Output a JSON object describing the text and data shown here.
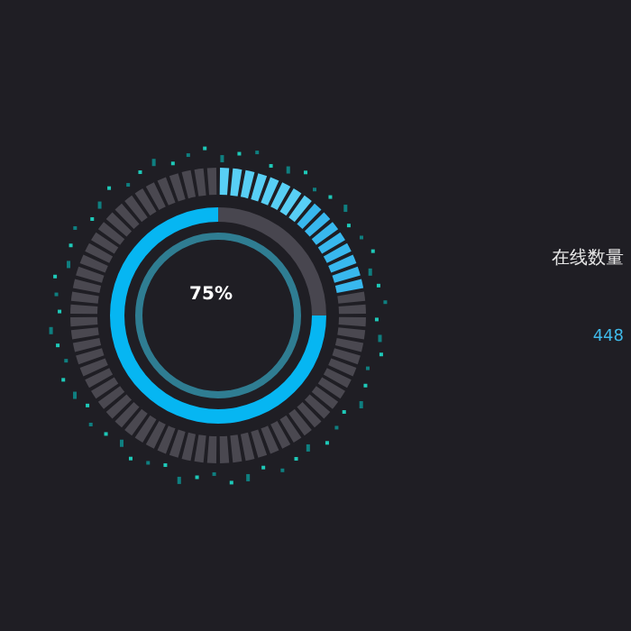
{
  "chart_data": {
    "type": "donut",
    "categories": [
      null,
      null
    ],
    "values": [
      75,
      25
    ],
    "colors": [
      "#06b6f2",
      "#48464f"
    ],
    "value_labels": [
      "75%",
      null
    ],
    "annotations": [
      "在线数量",
      "448"
    ]
  }
}
